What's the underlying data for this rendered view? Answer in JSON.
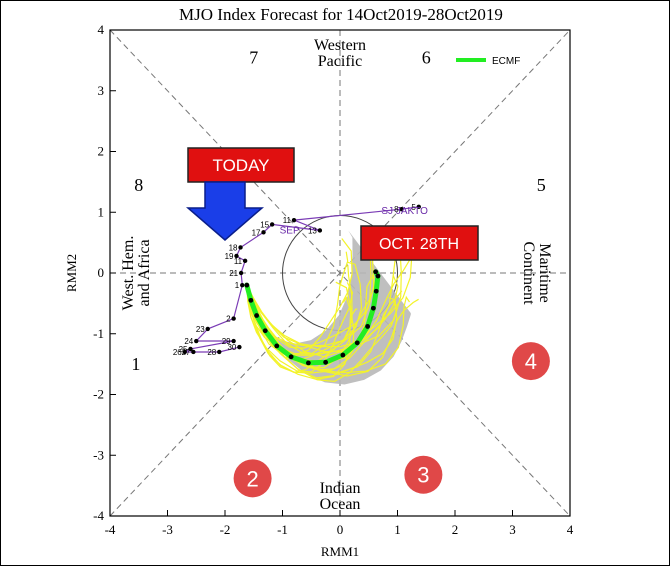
{
  "chart_data": {
    "type": "line",
    "title": "MJO Index Forecast for 14Oct2019-28Oct2019",
    "xlabel": "RMM1",
    "ylabel": "RMM2",
    "xlim": [
      -4,
      4
    ],
    "ylim": [
      -4,
      4
    ],
    "x_ticks": [
      "-4",
      "-3",
      "-2",
      "-1",
      "0",
      "1",
      "2",
      "3",
      "4"
    ],
    "y_ticks": [
      "-4",
      "-3",
      "-2",
      "-1",
      "0",
      "1",
      "2",
      "3",
      "4"
    ],
    "phase_numbers": [
      {
        "label": "1",
        "x": -3.55,
        "y": -1.5
      },
      {
        "label": "2",
        "x": -1.55,
        "y": -3.45
      },
      {
        "label": "3",
        "x": 1.55,
        "y": -3.45
      },
      {
        "label": "4",
        "x": 3.4,
        "y": -1.5
      },
      {
        "label": "5",
        "x": 3.5,
        "y": 1.45
      },
      {
        "label": "6",
        "x": 1.5,
        "y": 3.55
      },
      {
        "label": "7",
        "x": -1.5,
        "y": 3.55
      },
      {
        "label": "8",
        "x": -3.5,
        "y": 1.45
      }
    ],
    "region_labels": {
      "top": [
        "Western",
        "Pacific"
      ],
      "bottom": [
        "Indian",
        "Ocean"
      ],
      "left": [
        "West. Hem.",
        "and Africa"
      ],
      "right": [
        "Maritime",
        "Continent"
      ]
    },
    "legend": {
      "label": "ECMF",
      "color": "#22ee22",
      "placement": "top-right"
    },
    "month_labels": [
      {
        "label": "SEP",
        "x": -1.05,
        "y": 0.65,
        "color": "#6a2aa8"
      },
      {
        "label": "SJ JAKTO",
        "x": 0.72,
        "y": 0.97,
        "color": "#6a2aa8"
      }
    ],
    "observed": {
      "points": [
        {
          "label": "5",
          "x": 1.37,
          "y": 1.09
        },
        {
          "label": "8",
          "x": 1.07,
          "y": 1.05
        },
        {
          "label": "11",
          "x": -0.8,
          "y": 0.87
        },
        {
          "label": "13",
          "x": -0.35,
          "y": 0.7
        },
        {
          "label": "15",
          "x": -1.18,
          "y": 0.8
        },
        {
          "label": "17",
          "x": -1.33,
          "y": 0.67
        },
        {
          "label": "18",
          "x": -1.73,
          "y": 0.42
        },
        {
          "label": "19",
          "x": -1.8,
          "y": 0.28
        },
        {
          "label": "11",
          "x": -1.65,
          "y": 0.2
        },
        {
          "label": "21",
          "x": -1.72,
          "y": 0.0
        },
        {
          "label": "1",
          "x": -1.7,
          "y": -0.2
        },
        {
          "label": "2",
          "x": -1.85,
          "y": -0.75
        },
        {
          "label": "23",
          "x": -2.3,
          "y": -0.92
        },
        {
          "label": "24",
          "x": -2.5,
          "y": -1.12
        },
        {
          "label": "29",
          "x": -1.85,
          "y": -1.12
        },
        {
          "label": "25",
          "x": -2.6,
          "y": -1.25
        },
        {
          "label": "26",
          "x": -2.7,
          "y": -1.3
        },
        {
          "label": "27",
          "x": -2.55,
          "y": -1.3
        },
        {
          "label": "28",
          "x": -2.1,
          "y": -1.3
        },
        {
          "label": "30",
          "x": -1.75,
          "y": -1.22
        }
      ]
    },
    "ensemble_mean": {
      "color": "#22ee22",
      "x": [
        -1.62,
        -1.55,
        -1.45,
        -1.3,
        -1.1,
        -0.85,
        -0.55,
        -0.25,
        0.05,
        0.3,
        0.48,
        0.58,
        0.63,
        0.66,
        0.62
      ],
      "y": [
        -0.2,
        -0.45,
        -0.7,
        -0.95,
        -1.2,
        -1.38,
        -1.48,
        -1.47,
        -1.35,
        -1.15,
        -0.88,
        -0.58,
        -0.3,
        -0.05,
        0.02
      ]
    },
    "callouts": [
      {
        "text": "TODAY",
        "x": -1.72,
        "y": 1.8
      },
      {
        "text": "OCT. 28TH",
        "x": 1.52,
        "y": 0.5
      }
    ],
    "badges": [
      {
        "text": "2",
        "x": -1.52,
        "y": -3.38
      },
      {
        "text": "3",
        "x": 1.45,
        "y": -3.32
      },
      {
        "text": "4",
        "x": 3.32,
        "y": -1.45
      }
    ]
  }
}
